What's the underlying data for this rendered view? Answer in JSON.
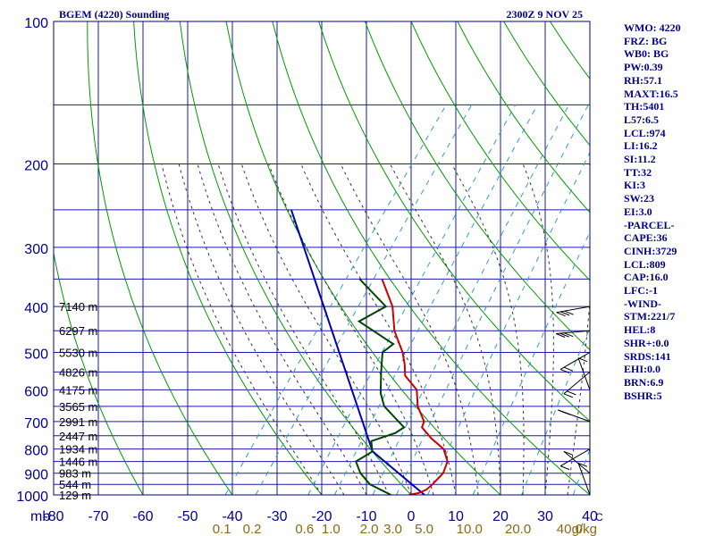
{
  "header": {
    "station": "BGEM (4220) Sounding",
    "time": "2300Z  9 NOV 25"
  },
  "side_panel": [
    "WMO: 4220",
    "FRZ: BG",
    "WB0: BG",
    "PW:0.39",
    "RH:57.1",
    "MAXT:16.5",
    "TH:5401",
    "L57:6.5",
    "LCL:974",
    "LI:16.2",
    "SI:11.2",
    "TT:32",
    "KI:3",
    "SW:23",
    "EI:3.0",
    "-PARCEL-",
    "CAPE:36",
    "CINH:3729",
    "LCL:809",
    "CAP:16.0",
    "LFC:-1",
    "-WIND-",
    "STM:221/7",
    "HEL:8",
    "SHR+:0.0",
    "SRDS:141",
    "EHI:0.0",
    "BRN:6.9",
    "BSHR:5"
  ],
  "colors": {
    "axis": "#00008b",
    "grid": "#1a1aa8",
    "dry_adiabat": "#009900",
    "moist_adiabat": "#333333",
    "mixing_ratio": "#3399cc",
    "temperature": "#cc0000",
    "dewpoint": "#004400",
    "parcel": "#0000b0",
    "mixing_label": "#8b6914"
  },
  "chart_data": {
    "type": "skew-t",
    "title": "BGEM (4220) Sounding",
    "xlim": [
      -80,
      40
    ],
    "ylim": [
      1000,
      100
    ],
    "y_scale": "log",
    "x_ticks": [
      -80,
      -70,
      -60,
      -50,
      -40,
      -30,
      -20,
      -10,
      0,
      10,
      20,
      30,
      40
    ],
    "x_tick_labels": [
      "-80",
      "-70",
      "-60",
      "-50",
      "-40",
      "-30",
      "-20",
      "-10",
      "0",
      "10",
      "20",
      "30",
      "40"
    ],
    "x_unit_label": "C",
    "y_axis_label": "mb",
    "y_ticks": [
      100,
      200,
      300,
      400,
      500,
      600,
      700,
      800,
      900,
      1000
    ],
    "y_tick_labels": [
      "100",
      "200",
      "300",
      "400",
      "500",
      "600",
      "700",
      "800",
      "900",
      "1000"
    ],
    "grid_isobars": [
      100,
      150,
      200,
      250,
      300,
      350,
      400,
      450,
      500,
      550,
      600,
      650,
      700,
      750,
      800,
      850,
      900,
      950,
      1000
    ],
    "height_labels": [
      {
        "p": 400,
        "text": "7140 m"
      },
      {
        "p": 450,
        "text": "6297 m"
      },
      {
        "p": 500,
        "text": "5530 m"
      },
      {
        "p": 550,
        "text": "4826 m"
      },
      {
        "p": 600,
        "text": "4175 m"
      },
      {
        "p": 650,
        "text": "3565 m"
      },
      {
        "p": 700,
        "text": "2991 m"
      },
      {
        "p": 750,
        "text": "2447 m"
      },
      {
        "p": 800,
        "text": "1934 m"
      },
      {
        "p": 850,
        "text": "1446 m"
      },
      {
        "p": 900,
        "text": "983 m"
      },
      {
        "p": 950,
        "text": "544 m"
      },
      {
        "p": 1000,
        "text": "129 m"
      }
    ],
    "mixing_ratio_labels": [
      {
        "w": 0.1,
        "text": "0.1"
      },
      {
        "w": 0.2,
        "text": "0.2"
      },
      {
        "w": 0.6,
        "text": "0.6"
      },
      {
        "w": 1.0,
        "text": "1.0"
      },
      {
        "w": 2.0,
        "text": "2.0"
      },
      {
        "w": 3.0,
        "text": "3.0"
      },
      {
        "w": 5.0,
        "text": "5.0"
      },
      {
        "w": 10.0,
        "text": "10.0"
      },
      {
        "w": 20.0,
        "text": "20.0"
      },
      {
        "w": 40.0,
        "text": "40.0"
      }
    ],
    "mixing_ratio_unit": "g/kg",
    "temperature": [
      {
        "p": 1000,
        "t": -0.5
      },
      {
        "p": 990,
        "t": 1.5
      },
      {
        "p": 975,
        "t": 2.5
      },
      {
        "p": 950,
        "t": 3.0
      },
      {
        "p": 900,
        "t": 3.5
      },
      {
        "p": 850,
        "t": 2.5
      },
      {
        "p": 800,
        "t": -0.5
      },
      {
        "p": 760,
        "t": -5.0
      },
      {
        "p": 720,
        "t": -9.0
      },
      {
        "p": 700,
        "t": -9.5
      },
      {
        "p": 650,
        "t": -13.5
      },
      {
        "p": 600,
        "t": -16.5
      },
      {
        "p": 560,
        "t": -21.5
      },
      {
        "p": 530,
        "t": -23.5
      },
      {
        "p": 500,
        "t": -26.0
      },
      {
        "p": 450,
        "t": -31.5
      },
      {
        "p": 400,
        "t": -36.0
      },
      {
        "p": 350,
        "t": -43.0
      }
    ],
    "dewpoint": [
      {
        "p": 1000,
        "t": -4.5
      },
      {
        "p": 950,
        "t": -11.0
      },
      {
        "p": 900,
        "t": -15.0
      },
      {
        "p": 850,
        "t": -18.0
      },
      {
        "p": 810,
        "t": -16.0
      },
      {
        "p": 770,
        "t": -18.0
      },
      {
        "p": 740,
        "t": -14.0
      },
      {
        "p": 720,
        "t": -13.0
      },
      {
        "p": 650,
        "t": -21.0
      },
      {
        "p": 610,
        "t": -24.0
      },
      {
        "p": 550,
        "t": -27.5
      },
      {
        "p": 500,
        "t": -30.5
      },
      {
        "p": 480,
        "t": -29.5
      },
      {
        "p": 430,
        "t": -41.0
      },
      {
        "p": 400,
        "t": -37.5
      },
      {
        "p": 350,
        "t": -48.0
      }
    ],
    "parcel_path": [
      {
        "p": 1000,
        "t": 3.0
      },
      {
        "p": 809,
        "t": -16.0
      },
      {
        "p": 250,
        "t": -75.0
      }
    ],
    "wind_barbs": [
      {
        "p": 400,
        "dir": 280,
        "spd": 25
      },
      {
        "p": 450,
        "dir": 275,
        "spd": 30
      },
      {
        "p": 500,
        "dir": 300,
        "spd": 20
      },
      {
        "p": 550,
        "dir": 310,
        "spd": 15
      },
      {
        "p": 600,
        "dir": 200,
        "spd": 10
      },
      {
        "p": 700,
        "dir": 250,
        "spd": 15
      },
      {
        "p": 800,
        "dir": 300,
        "spd": 10
      },
      {
        "p": 900,
        "dir": 230,
        "spd": 5
      },
      {
        "p": 1000,
        "dir": 200,
        "spd": 5
      }
    ],
    "dry_adiabats_theta": [
      -60,
      -40,
      -20,
      0,
      20,
      40,
      60,
      80,
      100,
      120,
      140,
      160,
      180,
      200,
      220,
      240,
      260,
      280,
      300
    ],
    "moist_adiabats_theta": [
      -20,
      -15,
      -10,
      -5,
      0,
      5,
      10,
      15,
      20,
      25,
      30,
      35
    ],
    "mixing_ratio_lines": [
      0.1,
      0.2,
      0.6,
      1.0,
      2.0,
      3.0,
      5.0,
      10.0,
      20.0,
      40.0
    ]
  }
}
